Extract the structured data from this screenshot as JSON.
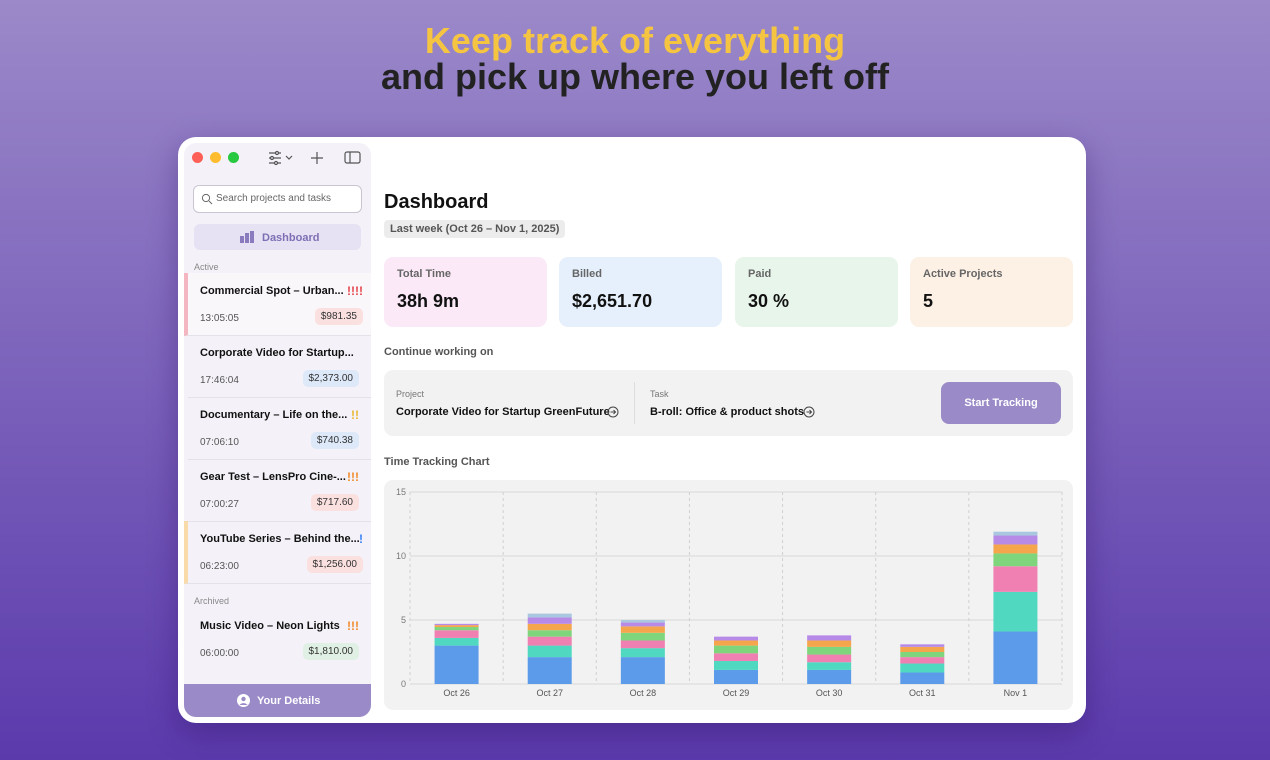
{
  "header": {
    "line1": "Keep track of everything",
    "line2": "and pick up where you left off"
  },
  "sidebar": {
    "search_placeholder": "Search projects and tasks",
    "nav": "Dashboard",
    "active_label": "Active",
    "active": [
      {
        "name": "Commercial Spot – Urban...",
        "priority": "!!!!",
        "time": "13:05:05",
        "amount": "$981.35"
      },
      {
        "name": "Corporate Video for Startup...",
        "time": "17:46:04",
        "amount": "$2,373.00"
      },
      {
        "name": "Documentary – Life on the...",
        "priority": "!!",
        "time": "07:06:10",
        "amount": "$740.38"
      },
      {
        "name": "Gear Test – LensPro Cine-...",
        "priority": "!!!",
        "time": "07:00:27",
        "amount": "$717.60"
      },
      {
        "name": "YouTube Series – Behind the...",
        "priority": "!",
        "time": "06:23:00",
        "amount": "$1,256.00"
      }
    ],
    "archived_label": "Archived",
    "archived": [
      {
        "name": "Music Video – Neon Lights",
        "priority": "!!!",
        "time": "06:00:00",
        "amount": "$1,810.00"
      }
    ],
    "footer": "Your Details"
  },
  "dashboard": {
    "title": "Dashboard",
    "range": "Last week (Oct 26 – Nov 1, 2025)",
    "stats": [
      {
        "label": "Total Time",
        "value": "38h 9m"
      },
      {
        "label": "Billed",
        "value": "$2,651.70"
      },
      {
        "label": "Paid",
        "value": "30 %"
      },
      {
        "label": "Active Projects",
        "value": "5"
      }
    ],
    "continue_label": "Continue working on",
    "project_label": "Project",
    "project": "Corporate Video for Startup GreenFuture",
    "task_label": "Task",
    "task": "B-roll: Office & product shots",
    "button": "Start Tracking",
    "chart_label": "Time Tracking Chart"
  },
  "chart_data": {
    "type": "bar",
    "stacked": true,
    "grid": true,
    "categories": [
      "Oct 26",
      "Oct 27",
      "Oct 28",
      "Oct 29",
      "Oct 30",
      "Oct 31",
      "Nov 1"
    ],
    "series": [
      {
        "color": "#5b9be9",
        "values": [
          3.0,
          2.1,
          2.1,
          1.1,
          1.1,
          0.9,
          4.1
        ]
      },
      {
        "color": "#50d8c0",
        "values": [
          0.6,
          0.9,
          0.7,
          0.7,
          0.6,
          0.7,
          3.1
        ]
      },
      {
        "color": "#f07fb2",
        "values": [
          0.6,
          0.7,
          0.6,
          0.6,
          0.6,
          0.5,
          2.0
        ]
      },
      {
        "color": "#7fd57c",
        "values": [
          0.25,
          0.5,
          0.6,
          0.6,
          0.6,
          0.4,
          1.0
        ]
      },
      {
        "color": "#f5a64c",
        "values": [
          0.15,
          0.5,
          0.5,
          0.4,
          0.5,
          0.4,
          0.7
        ]
      },
      {
        "color": "#b88ae8",
        "values": [
          0.1,
          0.5,
          0.3,
          0.3,
          0.4,
          0.2,
          0.7
        ]
      },
      {
        "color": "#a9c7de",
        "values": [
          0,
          0.3,
          0.2,
          0,
          0,
          0,
          0.3
        ]
      }
    ],
    "ylim": [
      0,
      15
    ],
    "yticks": [
      0,
      5,
      10,
      15
    ]
  }
}
